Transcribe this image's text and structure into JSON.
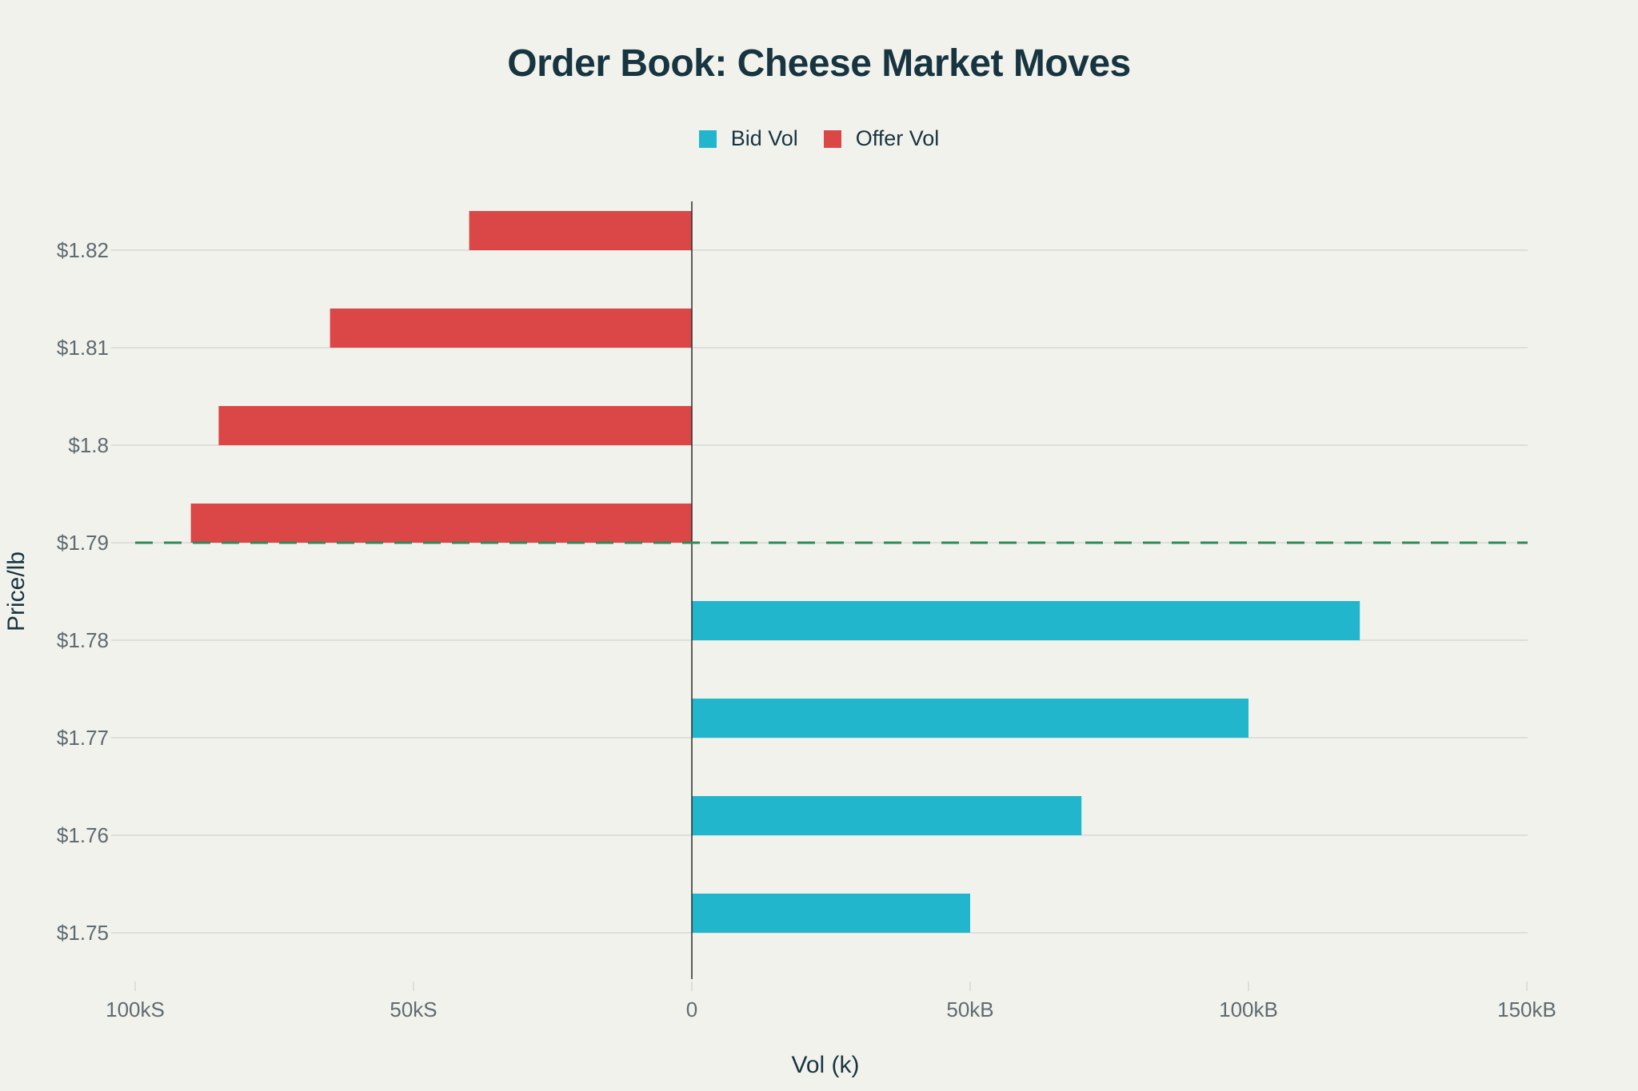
{
  "title": "Order Book: Cheese Market Moves",
  "legend": [
    {
      "label": "Bid Vol",
      "color": "#21b6cc"
    },
    {
      "label": "Offer Vol",
      "color": "#db4747"
    }
  ],
  "axes": {
    "xlabel": "Vol (k)",
    "ylabel": "Price/lb",
    "xticks": [
      "100kS",
      "50kS",
      "0",
      "50kB",
      "100kB",
      "150kB"
    ],
    "yticks": [
      "$1.82",
      "$1.81",
      "$1.8",
      "$1.79",
      "$1.78",
      "$1.77",
      "$1.76",
      "$1.75"
    ]
  },
  "colors": {
    "bid": "#21b6cc",
    "offer": "#db4747",
    "mid_line": "#2e8b57",
    "background": "#f2f2ed",
    "grid": "#d8d8d3",
    "text": "#173540"
  },
  "chart_data": {
    "type": "bar",
    "orientation": "horizontal",
    "title": "Order Book: Cheese Market Moves",
    "xlabel": "Vol (k)",
    "ylabel": "Price/lb",
    "xlim": [
      -100,
      150
    ],
    "x_tick_values": [
      -100,
      -50,
      0,
      50,
      100,
      150
    ],
    "x_tick_labels": [
      "100kS",
      "50kS",
      "0",
      "50kB",
      "100kB",
      "150kB"
    ],
    "categories": [
      "$1.82",
      "$1.81",
      "$1.8",
      "$1.79",
      "$1.78",
      "$1.77",
      "$1.76",
      "$1.75"
    ],
    "series": [
      {
        "name": "Offer Vol",
        "color": "#db4747",
        "values": [
          -40,
          -65,
          -85,
          -90,
          0,
          0,
          0,
          0
        ]
      },
      {
        "name": "Bid Vol",
        "color": "#21b6cc",
        "values": [
          0,
          0,
          0,
          0,
          120,
          100,
          70,
          50
        ]
      }
    ],
    "annotations": [
      {
        "type": "hline",
        "y": "$1.79",
        "style": "dashed",
        "color": "#2e8b57",
        "label": ""
      }
    ],
    "grid": true,
    "legend_position": "top-center"
  }
}
